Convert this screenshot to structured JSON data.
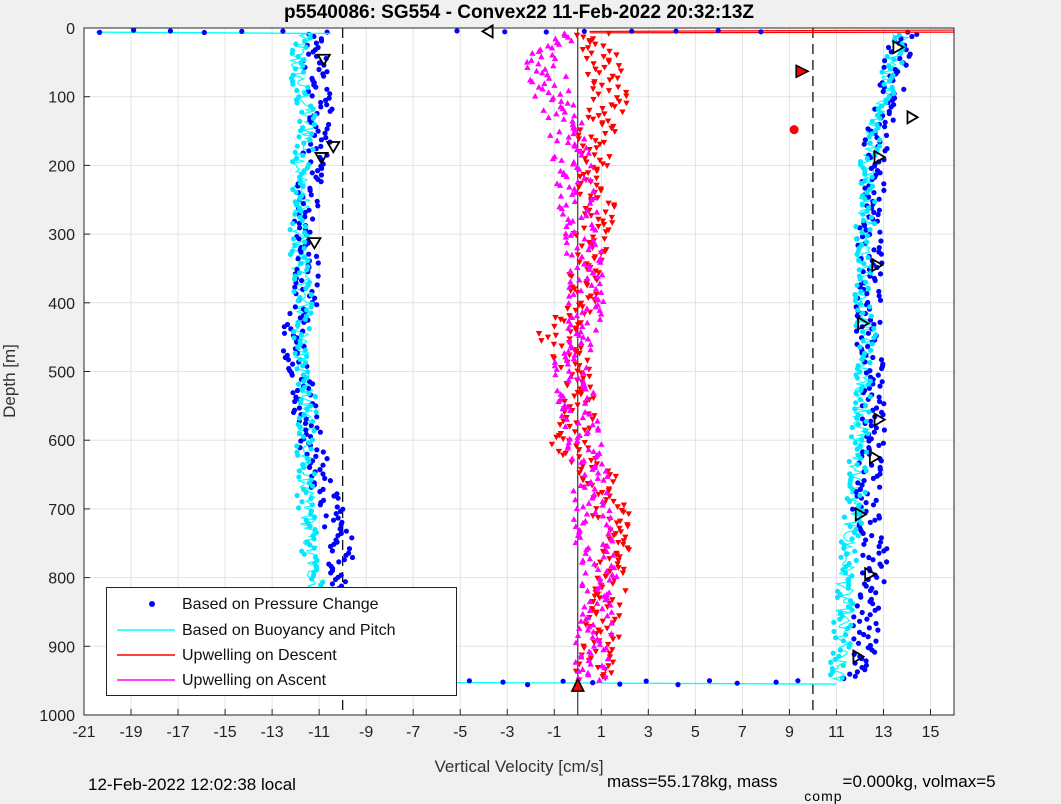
{
  "chart_data": {
    "type": "scatter",
    "title": "p5540086: SG554 - Convex22 11-Feb-2022 20:32:13Z",
    "xlabel": "Vertical Velocity [cm/s]",
    "ylabel": "Depth [m]",
    "xlim": [
      -21,
      16
    ],
    "ylim": [
      1000,
      0
    ],
    "xticks": [
      -21,
      -19,
      -17,
      -15,
      -13,
      -11,
      -9,
      -7,
      -5,
      -3,
      -1,
      1,
      3,
      5,
      7,
      9,
      11,
      13,
      15
    ],
    "yticks": [
      0,
      100,
      200,
      300,
      400,
      500,
      600,
      700,
      800,
      900,
      1000
    ],
    "grid": true,
    "legend_position": "bottom-left",
    "reference_lines": {
      "dashed_x": [
        -10,
        10
      ],
      "solid_x": [
        0
      ]
    },
    "series": [
      {
        "name": "Based on Pressure Change",
        "color": "#0000ff",
        "marker": "dot",
        "descent_profile": {
          "depth": [
            0,
            50,
            100,
            150,
            200,
            250,
            300,
            350,
            400,
            450,
            500,
            550,
            600,
            650,
            700,
            750,
            800,
            850,
            900,
            950
          ],
          "x": [
            -10.9,
            -11.2,
            -11.0,
            -10.9,
            -11.3,
            -11.4,
            -11.6,
            -11.5,
            -11.5,
            -12.2,
            -11.7,
            -11.6,
            -11.4,
            -11.0,
            -10.5,
            -10.0,
            -10.1,
            -10.6,
            -10.9,
            -11.0
          ]
        },
        "ascent_profile": {
          "depth": [
            0,
            50,
            100,
            150,
            200,
            250,
            300,
            350,
            400,
            450,
            500,
            550,
            600,
            650,
            700,
            750,
            800,
            850,
            900,
            950
          ],
          "x": [
            14.0,
            13.5,
            13.3,
            12.8,
            12.6,
            12.5,
            12.4,
            12.5,
            12.4,
            12.3,
            12.5,
            12.6,
            12.5,
            12.4,
            12.2,
            12.7,
            12.6,
            12.3,
            12.2,
            11.8
          ]
        }
      },
      {
        "name": "Based on Buoyancy and Pitch",
        "color": "#00ffff",
        "marker": "line",
        "descent_profile": {
          "depth": [
            0,
            50,
            100,
            150,
            200,
            250,
            300,
            350,
            400,
            450,
            500,
            550,
            600,
            650,
            700,
            750,
            800,
            850,
            900,
            950
          ],
          "x": [
            -11.6,
            -12.0,
            -11.6,
            -11.4,
            -11.8,
            -11.7,
            -11.9,
            -11.8,
            -11.7,
            -11.8,
            -11.6,
            -11.5,
            -11.6,
            -11.6,
            -11.5,
            -11.4,
            -11.2,
            -11.0,
            -11.1,
            -11.1
          ]
        },
        "ascent_profile": {
          "depth": [
            0,
            50,
            100,
            150,
            200,
            250,
            300,
            350,
            400,
            450,
            500,
            550,
            600,
            650,
            700,
            750,
            800,
            850,
            900,
            950
          ],
          "x": [
            13.8,
            13.4,
            13.0,
            12.6,
            12.4,
            12.3,
            12.2,
            12.1,
            12.1,
            12.3,
            12.2,
            12.1,
            12.0,
            11.9,
            11.8,
            11.5,
            11.4,
            11.3,
            11.2,
            11.0
          ]
        }
      },
      {
        "name": "Upwelling on Descent",
        "color": "#ff0000",
        "marker": "triangle-down",
        "profile": {
          "depth": [
            0,
            50,
            100,
            150,
            200,
            250,
            300,
            350,
            400,
            450,
            500,
            550,
            600,
            650,
            700,
            750,
            800,
            850,
            900,
            950
          ],
          "x": [
            0.5,
            1.0,
            1.5,
            0.8,
            0.7,
            0.9,
            0.6,
            0.4,
            0.2,
            -1.0,
            0.2,
            0.1,
            -0.5,
            0.8,
            1.4,
            1.6,
            1.5,
            1.2,
            0.9,
            0.6
          ]
        }
      },
      {
        "name": "Upwelling on Ascent",
        "color": "#ff00ff",
        "marker": "triangle-up",
        "profile": {
          "depth": [
            0,
            50,
            100,
            150,
            200,
            250,
            300,
            350,
            400,
            450,
            500,
            550,
            600,
            650,
            700,
            750,
            800,
            850,
            900,
            950
          ],
          "x": [
            -0.8,
            -1.5,
            -1.0,
            -0.5,
            -0.2,
            0.0,
            0.1,
            0.3,
            0.4,
            0.0,
            -0.3,
            0.0,
            0.2,
            0.5,
            0.6,
            0.7,
            0.9,
            0.7,
            0.6,
            0.4
          ]
        }
      }
    ],
    "surface_lines": {
      "descent_red_depth": 5,
      "bottom_cyan_depth": 955
    }
  },
  "legend": {
    "items": [
      {
        "label": "Based on Pressure Change"
      },
      {
        "label": "Based on Buoyancy and Pitch"
      },
      {
        "label": "Upwelling on Descent"
      },
      {
        "label": "Upwelling on Ascent"
      }
    ]
  },
  "footer": {
    "local_time": "12-Feb-2022 12:02:38 local",
    "mass_text": "mass=55.178kg, mass",
    "comp_subscript": "comp",
    "volmax_text": "=0.000kg, volmax=5"
  }
}
